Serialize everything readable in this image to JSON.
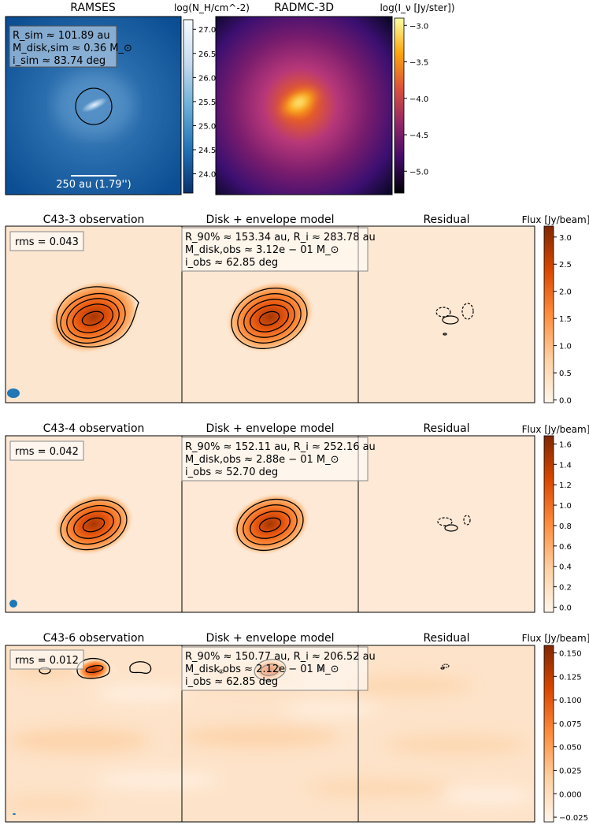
{
  "top_row": {
    "ramses": {
      "title": "RAMSES",
      "colorbar_label": "log(N_H/cm^-2)",
      "colorbar_ticks": [
        "27.0",
        "26.5",
        "26.0",
        "25.5",
        "25.0",
        "24.5",
        "24.0"
      ],
      "info_lines": [
        "R_sim ≈ 101.89 au",
        "M_disk,sim ≈ 0.36 M_⊙",
        "i_sim ≈ 83.74 deg"
      ],
      "scalebar_label": "250 au (1.79'')"
    },
    "radmc": {
      "title": "RADMC-3D",
      "colorbar_label": "log(I_ν [Jy/ster])",
      "colorbar_ticks": [
        "−3.0",
        "−3.5",
        "−4.0",
        "−4.5",
        "−5.0"
      ]
    }
  },
  "rows": [
    {
      "obs_title": "C43-3 observation",
      "model_title": "Disk + envelope model",
      "resid_title": "Residual",
      "rms": "rms = 0.043",
      "model_lines": [
        "R_90% ≈ 153.34 au, R_i ≈ 283.78 au",
        "M_disk,obs ≈ 3.12e − 01 M_⊙",
        "i_obs ≈ 62.85 deg"
      ],
      "colorbar_label": "Flux [Jy/beam]",
      "colorbar_ticks": [
        "3.0",
        "2.5",
        "2.0",
        "1.5",
        "1.0",
        "0.5",
        "0.0"
      ]
    },
    {
      "obs_title": "C43-4 observation",
      "model_title": "Disk + envelope model",
      "resid_title": "Residual",
      "rms": "rms = 0.042",
      "model_lines": [
        "R_90% ≈ 152.11 au, R_i ≈ 252.16 au",
        "M_disk,obs ≈ 2.88e − 01 M_⊙",
        "i_obs ≈ 52.70 deg"
      ],
      "colorbar_label": "Flux [Jy/beam]",
      "colorbar_ticks": [
        "1.6",
        "1.4",
        "1.2",
        "1.0",
        "0.8",
        "0.6",
        "0.4",
        "0.2",
        "0.0"
      ]
    },
    {
      "obs_title": "C43-6 observation",
      "model_title": "Disk + envelope model",
      "resid_title": "Residual",
      "rms": "rms = 0.012",
      "model_lines": [
        "R_90% ≈ 150.77 au, R_i ≈ 206.52 au",
        "M_disk,obs ≈ 2.12e − 01 M_⊙",
        "i_obs ≈ 62.85 deg"
      ],
      "colorbar_label": "Flux [Jy/beam]",
      "colorbar_ticks": [
        "0.150",
        "0.125",
        "0.100",
        "0.075",
        "0.050",
        "0.025",
        "0.000",
        "−0.025"
      ]
    }
  ],
  "chart_data": [
    {
      "type": "heatmap",
      "title": "RAMSES",
      "colorbar": "log(N_H/cm^-2)",
      "color_range": [
        23.6,
        27.2
      ],
      "colormap": "Blues"
    },
    {
      "type": "heatmap",
      "title": "RADMC-3D",
      "colorbar": "log(I_ν [Jy/ster])",
      "color_range": [
        -5.3,
        -2.9
      ],
      "colormap": "inferno"
    },
    {
      "type": "heatmap",
      "title": "C43-3 observation / Disk + envelope model / Residual",
      "colorbar": "Flux [Jy/beam]",
      "color_range": [
        -0.05,
        3.2
      ],
      "colormap": "Oranges"
    },
    {
      "type": "heatmap",
      "title": "C43-4 observation / Disk + envelope model / Residual",
      "colorbar": "Flux [Jy/beam]",
      "color_range": [
        -0.05,
        1.68
      ],
      "colormap": "Oranges"
    },
    {
      "type": "heatmap",
      "title": "C43-6 observation / Disk + envelope model / Residual",
      "colorbar": "Flux [Jy/beam]",
      "color_range": [
        -0.03,
        0.158
      ],
      "colormap": "Oranges"
    }
  ]
}
